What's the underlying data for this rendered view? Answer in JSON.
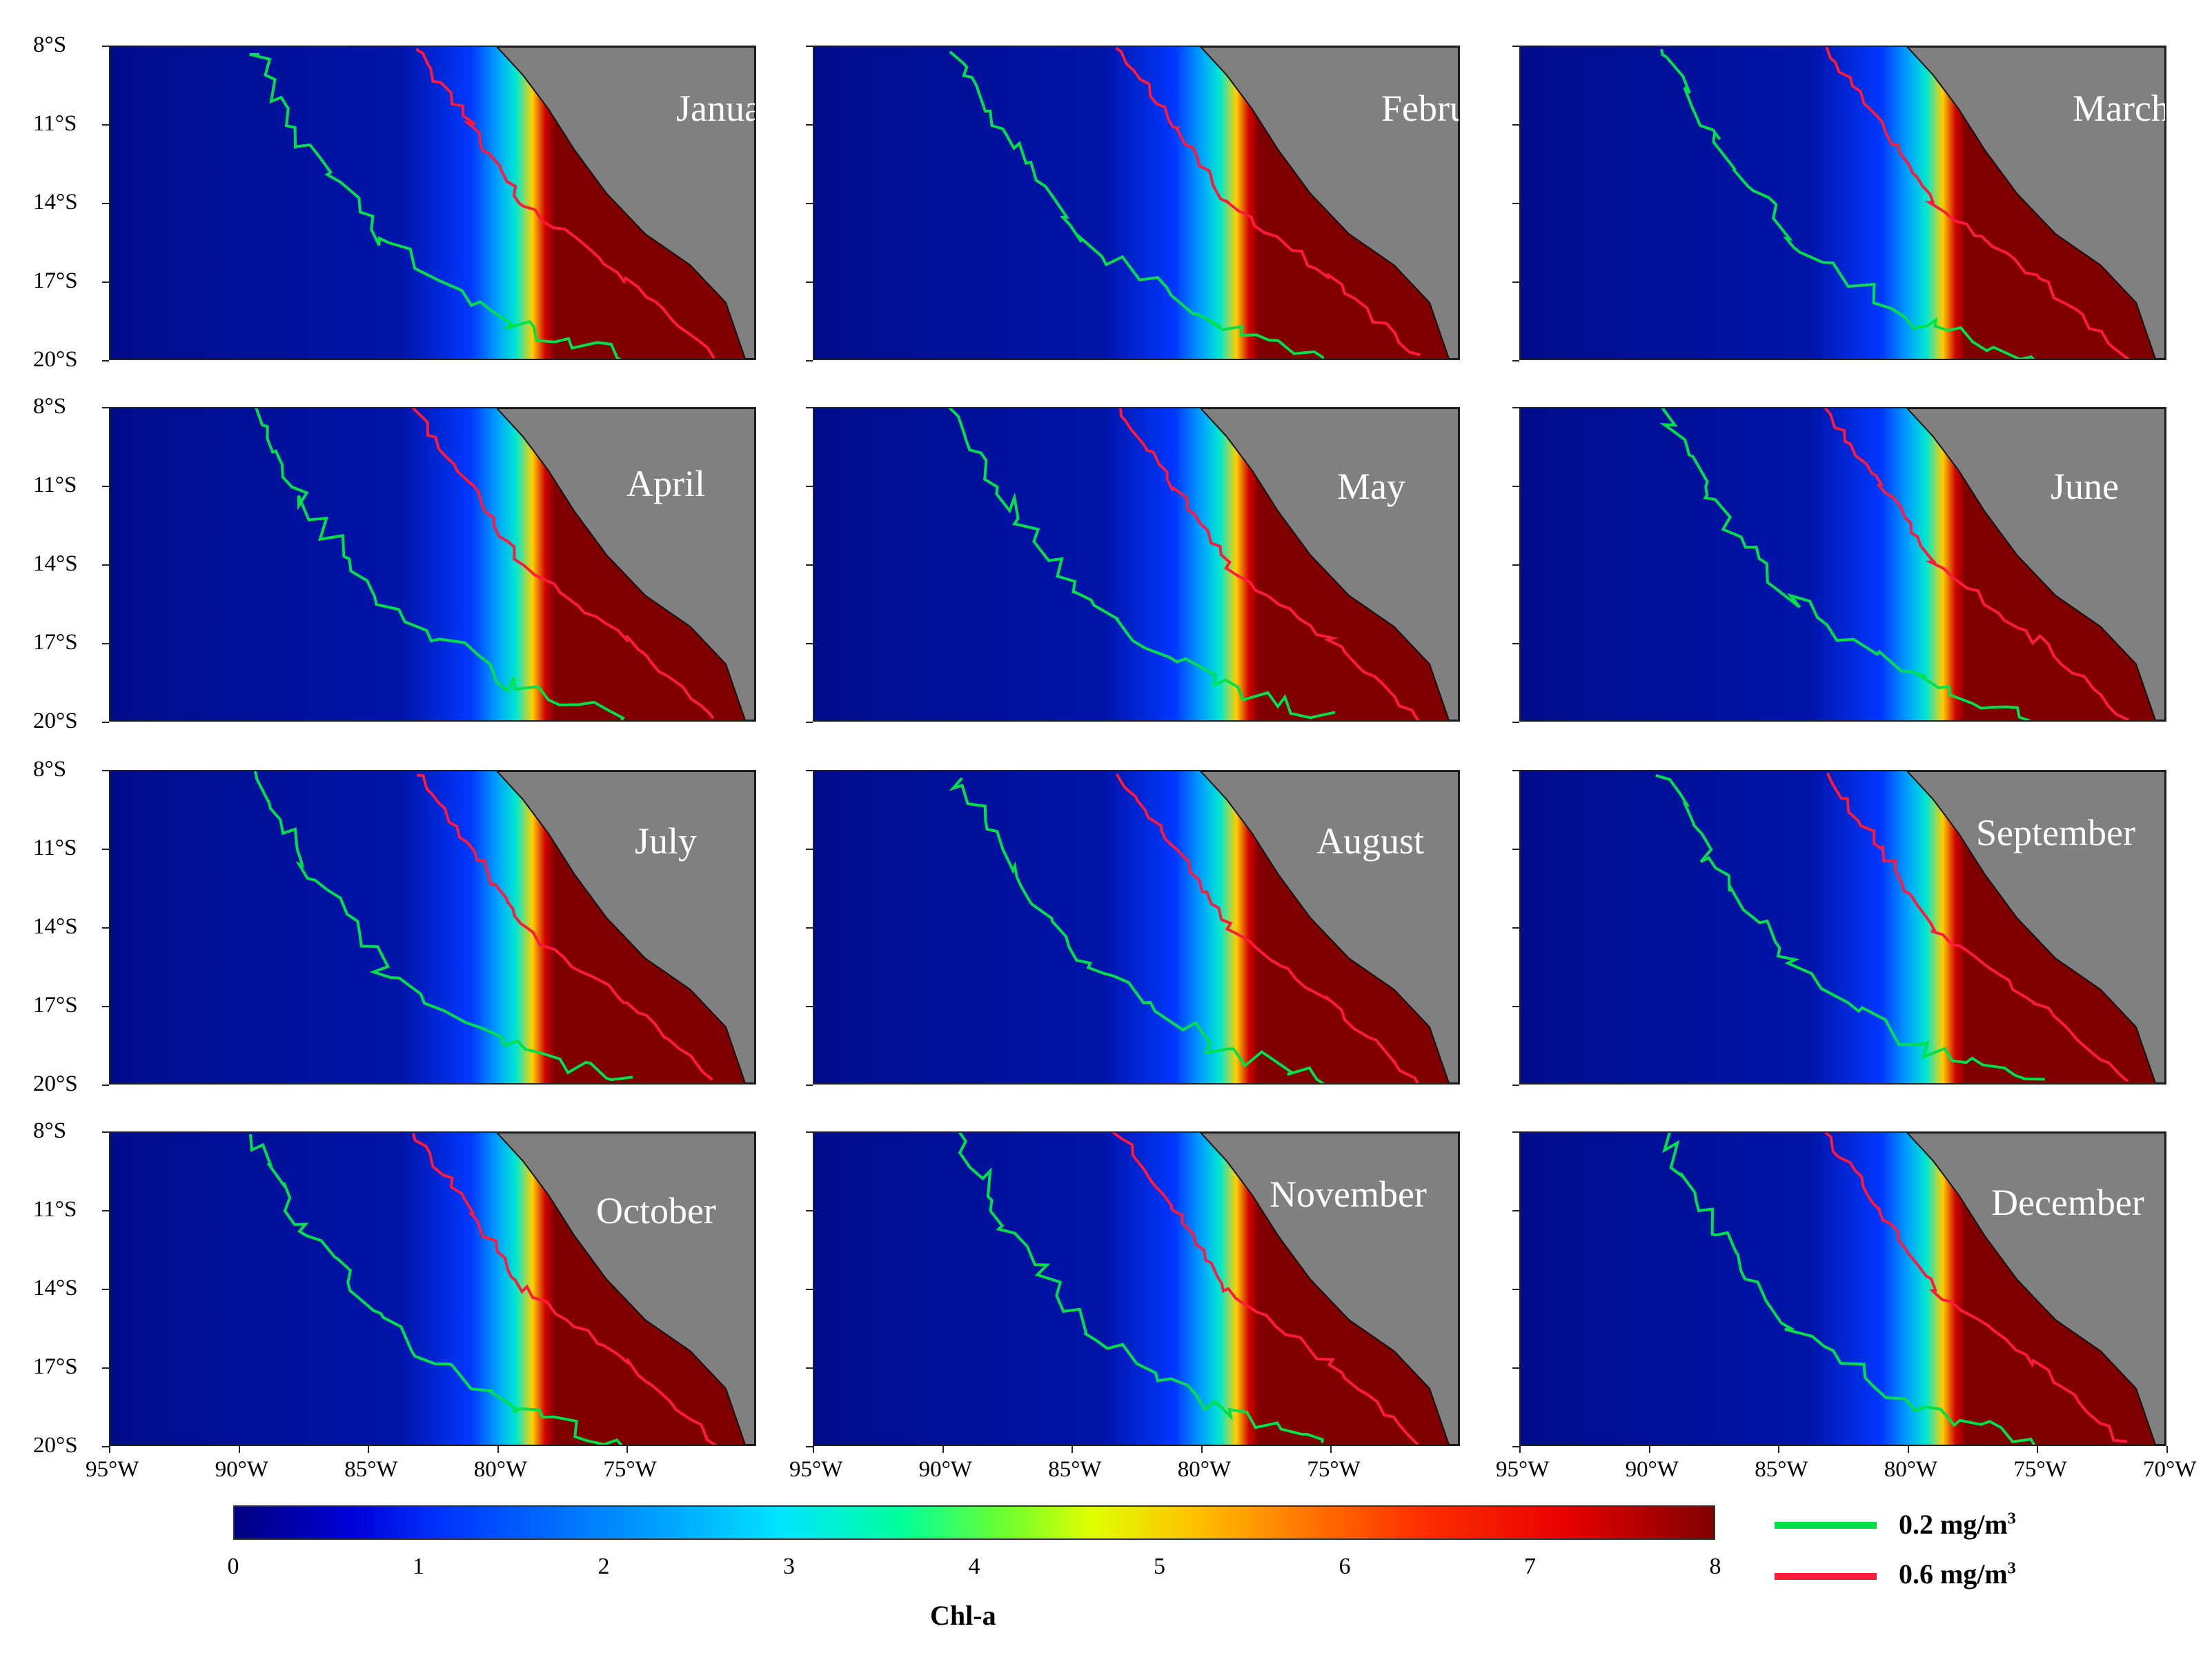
{
  "panels": [
    {
      "month": "January"
    },
    {
      "month": "February"
    },
    {
      "month": "March"
    },
    {
      "month": "April"
    },
    {
      "month": "May"
    },
    {
      "month": "June"
    },
    {
      "month": "July"
    },
    {
      "month": "August"
    },
    {
      "month": "September"
    },
    {
      "month": "October"
    },
    {
      "month": "November"
    },
    {
      "month": "December"
    }
  ],
  "lat_labels": [
    "8°S",
    "11°S",
    "14°S",
    "17°S",
    "20°S"
  ],
  "lon_labels_col1": [
    "95°W",
    "90°W",
    "85°W",
    "80°W",
    "75°W"
  ],
  "lon_labels_col2": [
    "95°W",
    "90°W",
    "85°W",
    "80°W",
    "75°W"
  ],
  "lon_labels_col3": [
    "95°W",
    "90°W",
    "85°W",
    "80°W",
    "75°W",
    "70°W"
  ],
  "colorbar": {
    "ticks": [
      "0",
      "1",
      "2",
      "3",
      "4",
      "5",
      "6",
      "7",
      "8"
    ],
    "label": "Chl-a",
    "range": [
      0,
      8
    ]
  },
  "legend": {
    "items": [
      {
        "label": "0.2 mg/m",
        "sup": "3",
        "color": "#00e04a"
      },
      {
        "label": "0.6 mg/m",
        "sup": "3",
        "color": "#ff1a3c"
      }
    ]
  },
  "colors": {
    "ocean": "#00008f",
    "land": "#808080",
    "contour_low": "#00e04a",
    "contour_high": "#ff1a3c"
  }
}
